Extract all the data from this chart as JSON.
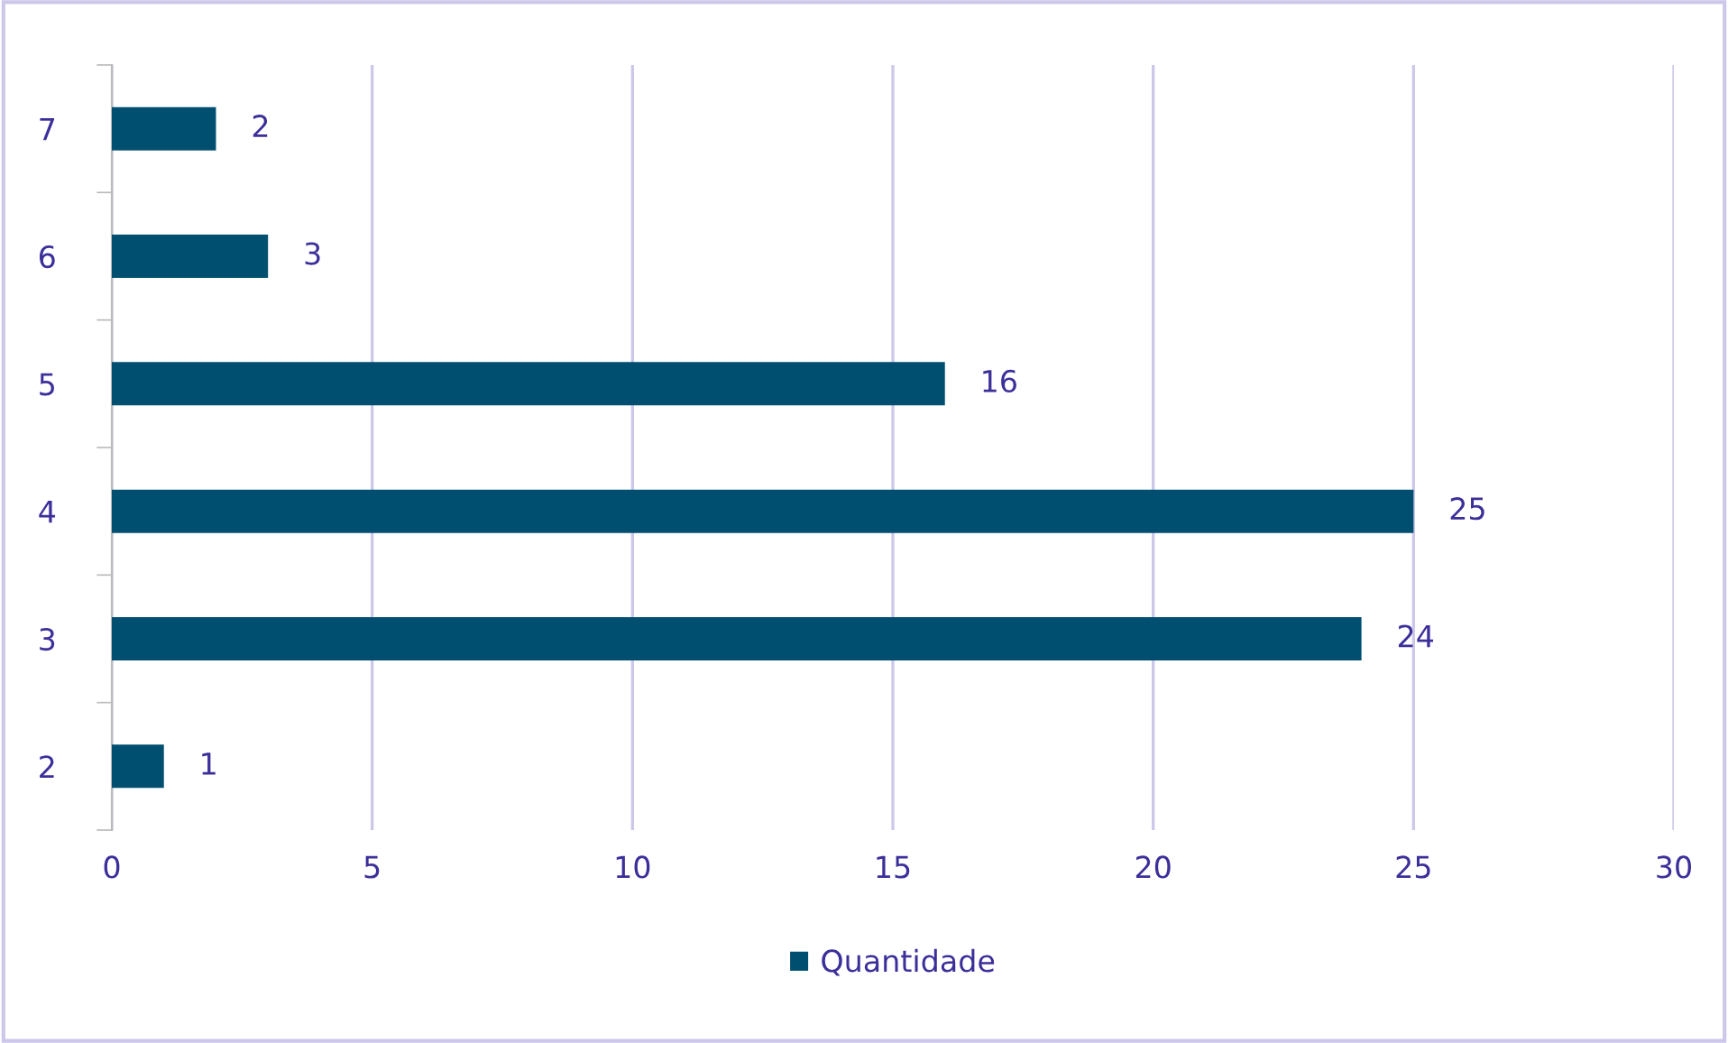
{
  "chart_data": {
    "type": "bar",
    "orientation": "horizontal",
    "categories": [
      "7",
      "6",
      "5",
      "4",
      "3",
      "2"
    ],
    "series": [
      {
        "name": "Quantidade",
        "color": "#004f71",
        "values": [
          2,
          3,
          16,
          25,
          24,
          1
        ]
      }
    ],
    "xlim": [
      0,
      30
    ],
    "xticks": [
      0,
      5,
      10,
      15,
      20,
      25,
      30
    ],
    "grid": "x",
    "legend": "bottom",
    "data_labels": true
  }
}
